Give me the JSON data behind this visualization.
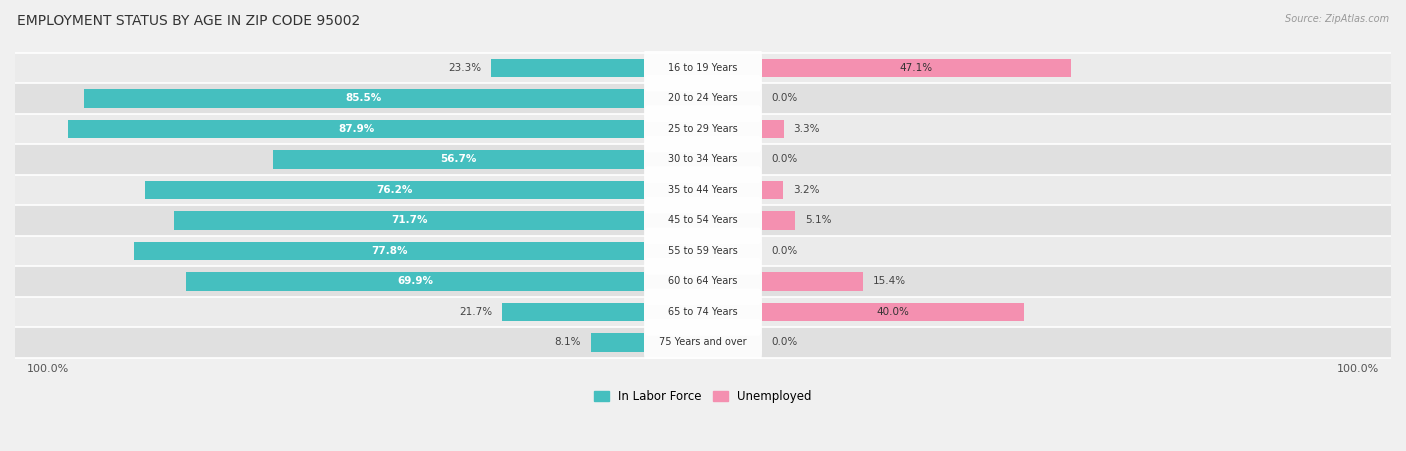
{
  "title": "EMPLOYMENT STATUS BY AGE IN ZIP CODE 95002",
  "source": "Source: ZipAtlas.com",
  "categories": [
    "16 to 19 Years",
    "20 to 24 Years",
    "25 to 29 Years",
    "30 to 34 Years",
    "35 to 44 Years",
    "45 to 54 Years",
    "55 to 59 Years",
    "60 to 64 Years",
    "65 to 74 Years",
    "75 Years and over"
  ],
  "in_labor_force": [
    23.3,
    85.5,
    87.9,
    56.7,
    76.2,
    71.7,
    77.8,
    69.9,
    21.7,
    8.1
  ],
  "unemployed": [
    47.1,
    0.0,
    3.3,
    0.0,
    3.2,
    5.1,
    0.0,
    15.4,
    40.0,
    0.0
  ],
  "labor_color": "#45bfbf",
  "unemployed_color": "#f490b0",
  "title_fontsize": 10,
  "label_fontsize": 7.5,
  "legend_fontsize": 8.5,
  "axis_label_fontsize": 8,
  "background_color": "#f0f0f0"
}
